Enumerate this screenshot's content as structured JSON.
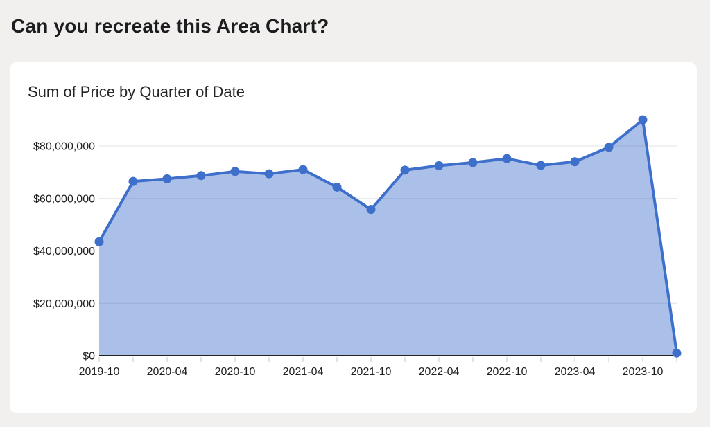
{
  "page": {
    "title": "Can you recreate this Area Chart?"
  },
  "card": {
    "title": "Sum of Price by Quarter of Date"
  },
  "colors": {
    "page_background": "#F1F0EF",
    "card_background": "#FFFFFF",
    "line": "#3E6FCB",
    "area_fill": "rgba(62,111,203,0.44)",
    "axis_line": "#212121",
    "gridline": "#E3E3E3",
    "tick_mark": "#C9C9C9",
    "axis_label": "#1F1F1F"
  },
  "chart_data": {
    "type": "area",
    "title": "Sum of Price by Quarter of Date",
    "xlabel": "",
    "ylabel": "",
    "legend": "none",
    "grid": true,
    "ylim": [
      0,
      90000000
    ],
    "x": [
      "2019-10",
      "2020-01",
      "2020-04",
      "2020-07",
      "2020-10",
      "2021-01",
      "2021-04",
      "2021-07",
      "2021-10",
      "2022-01",
      "2022-04",
      "2022-07",
      "2022-10",
      "2023-01",
      "2023-04",
      "2023-07",
      "2023-10",
      "2024-01"
    ],
    "values": [
      43500000,
      66500000,
      67500000,
      68700000,
      70300000,
      69400000,
      71000000,
      64300000,
      55800000,
      70800000,
      72500000,
      73700000,
      75200000,
      72600000,
      74000000,
      79500000,
      90000000,
      1000000
    ],
    "y_ticks": [
      {
        "label": "$0",
        "value": 0
      },
      {
        "label": "$20,000,000",
        "value": 20000000
      },
      {
        "label": "$40,000,000",
        "value": 40000000
      },
      {
        "label": "$60,000,000",
        "value": 60000000
      },
      {
        "label": "$80,000,000",
        "value": 80000000
      }
    ],
    "x_tick_labels_shown": [
      "2019-10",
      "2020-04",
      "2020-10",
      "2021-04",
      "2021-10",
      "2022-04",
      "2022-10",
      "2023-04",
      "2023-10"
    ]
  }
}
